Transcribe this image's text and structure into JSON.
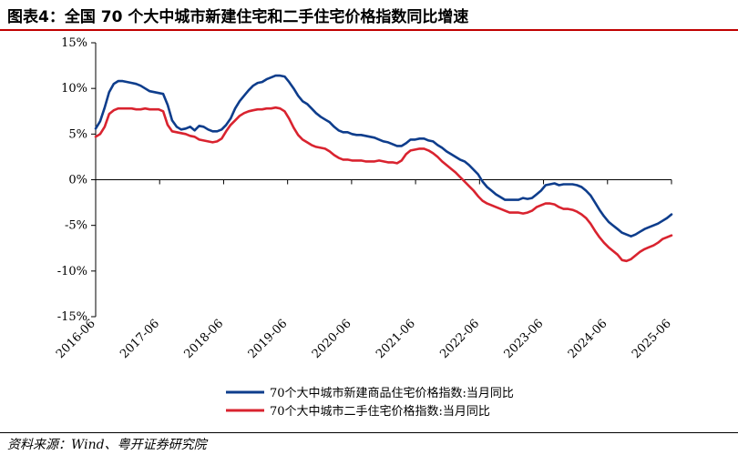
{
  "title": "图表4：全国 70 个大中城市新建住宅和二手住宅价格指数同比增速",
  "source": "资料来源：Wind、粤开证券研究院",
  "colors": {
    "accent": "#c00000",
    "series_new": "#0e3d8c",
    "series_second": "#d9232f"
  },
  "chart_data": {
    "type": "line",
    "title": "图表4：全国 70 个大中城市新建住宅和二手住宅价格指数同比增速",
    "xlabel": "",
    "ylabel": "",
    "x_ticks": [
      "2016-06",
      "2017-06",
      "2018-06",
      "2019-06",
      "2020-06",
      "2021-06",
      "2022-06",
      "2023-06",
      "2024-06",
      "2025-06"
    ],
    "y_ticks": [
      "15%",
      "10%",
      "5%",
      "0%",
      "-5%",
      "-10%",
      "-15%"
    ],
    "ylim": [
      -15,
      15
    ],
    "x_start": "2016-06",
    "x_end": "2025-06",
    "series": [
      {
        "name": "70个大中城市新建商品住宅价格指数:当月同比",
        "values": [
          5.6,
          6.4,
          7.9,
          9.6,
          10.5,
          10.8,
          10.8,
          10.7,
          10.6,
          10.5,
          10.3,
          10.0,
          9.7,
          9.6,
          9.5,
          9.4,
          8.2,
          6.5,
          5.8,
          5.5,
          5.6,
          5.8,
          5.4,
          5.9,
          5.8,
          5.5,
          5.3,
          5.3,
          5.5,
          6.0,
          6.7,
          7.8,
          8.6,
          9.2,
          9.8,
          10.3,
          10.6,
          10.7,
          11.0,
          11.2,
          11.4,
          11.4,
          11.3,
          10.7,
          10.0,
          9.2,
          8.6,
          8.3,
          7.8,
          7.3,
          6.9,
          6.6,
          6.3,
          5.8,
          5.4,
          5.2,
          5.2,
          5.0,
          4.9,
          4.9,
          4.8,
          4.7,
          4.6,
          4.4,
          4.2,
          4.1,
          3.9,
          3.7,
          3.7,
          4.0,
          4.4,
          4.4,
          4.5,
          4.5,
          4.3,
          4.2,
          3.8,
          3.5,
          3.1,
          2.8,
          2.5,
          2.2,
          2.0,
          1.6,
          1.1,
          0.6,
          -0.2,
          -0.8,
          -1.2,
          -1.6,
          -1.9,
          -2.2,
          -2.2,
          -2.2,
          -2.2,
          -2.0,
          -2.1,
          -2.0,
          -1.6,
          -1.2,
          -0.6,
          -0.5,
          -0.4,
          -0.6,
          -0.5,
          -0.5,
          -0.5,
          -0.6,
          -0.8,
          -1.2,
          -1.7,
          -2.5,
          -3.3,
          -4.0,
          -4.6,
          -5.0,
          -5.4,
          -5.8,
          -6.0,
          -6.2,
          -6.0,
          -5.7,
          -5.4,
          -5.2,
          -5.0,
          -4.8,
          -4.5,
          -4.2,
          -3.8
        ]
      },
      {
        "name": "70个大中城市二手住宅价格指数:当月同比",
        "values": [
          4.7,
          5.0,
          5.8,
          7.2,
          7.6,
          7.8,
          7.8,
          7.8,
          7.8,
          7.7,
          7.7,
          7.8,
          7.7,
          7.7,
          7.7,
          7.5,
          6.0,
          5.3,
          5.2,
          5.1,
          5.0,
          4.8,
          4.7,
          4.4,
          4.3,
          4.2,
          4.1,
          4.2,
          4.5,
          5.3,
          6.0,
          6.5,
          7.0,
          7.3,
          7.5,
          7.6,
          7.7,
          7.7,
          7.8,
          7.8,
          7.9,
          7.8,
          7.5,
          6.7,
          5.7,
          4.9,
          4.4,
          4.1,
          3.8,
          3.6,
          3.5,
          3.4,
          3.1,
          2.7,
          2.4,
          2.2,
          2.2,
          2.1,
          2.1,
          2.1,
          2.0,
          2.0,
          2.0,
          2.1,
          2.0,
          1.9,
          1.9,
          1.8,
          2.1,
          2.8,
          3.2,
          3.3,
          3.4,
          3.4,
          3.2,
          2.9,
          2.5,
          2.0,
          1.6,
          1.2,
          0.8,
          0.3,
          -0.2,
          -0.7,
          -1.2,
          -1.8,
          -2.3,
          -2.6,
          -2.8,
          -3.0,
          -3.2,
          -3.4,
          -3.6,
          -3.6,
          -3.6,
          -3.7,
          -3.6,
          -3.4,
          -3.0,
          -2.8,
          -2.6,
          -2.6,
          -2.7,
          -3.0,
          -3.2,
          -3.2,
          -3.3,
          -3.5,
          -3.8,
          -4.2,
          -4.8,
          -5.6,
          -6.3,
          -6.9,
          -7.4,
          -7.8,
          -8.2,
          -8.8,
          -8.9,
          -8.7,
          -8.3,
          -7.9,
          -7.6,
          -7.4,
          -7.2,
          -6.9,
          -6.5,
          -6.3,
          -6.1
        ]
      }
    ]
  }
}
